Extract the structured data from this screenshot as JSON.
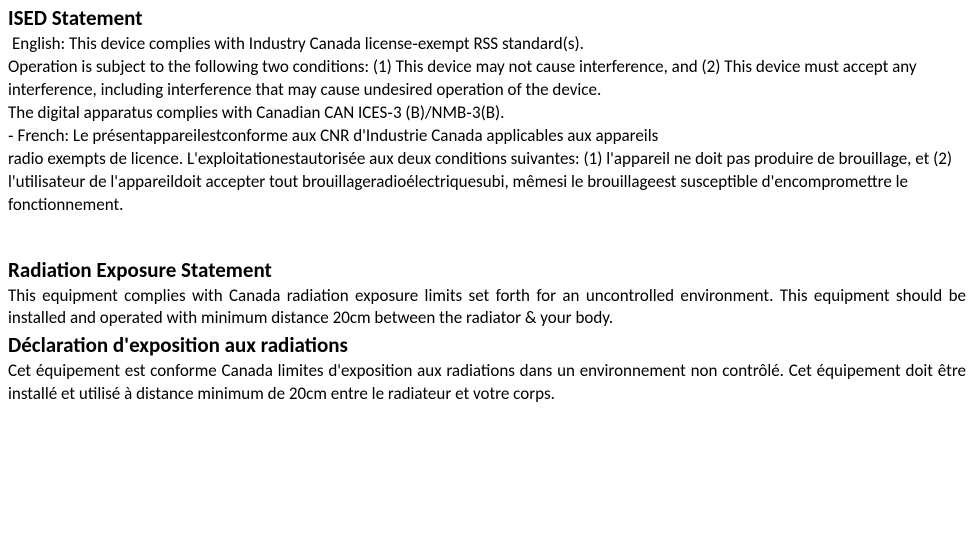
{
  "heading1": "ISED Statement",
  "para1": " English: This device complies with Industry Canada license‐exempt RSS standard(s).",
  "para2": "Operation is subject to the following two conditions: (1) This device may not cause interference, and (2) This device must accept any interference, including interference that may cause undesired operation of the device.",
  "para3": "The digital apparatus complies with Canadian CAN ICES‐3 (B)/NMB‐3(B).",
  "para4": "‐ French: Le présentappareilestconforme aux CNR d'Industrie Canada applicables aux appareils",
  "para5": "radio exempts de licence. L'exploitationestautorisée aux deux conditions suivantes: (1) l'appareil ne doit pas produire de brouillage, et (2) l'utilisateur de l'appareildoit accepter tout brouillageradioélectriquesubi, mêmesi le brouillageest susceptible d'encompromettre le fonctionnement.",
  "heading2": "Radiation Exposure Statement",
  "para6": "This equipment complies with Canada radiation exposure limits set forth for an uncontrolled environment. This equipment should be installed and operated with minimum distance 20cm between the radiator & your body.",
  "heading3": "Déclaration d'exposition aux radiations",
  "para7": "Cet équipement est conforme Canada limites d'exposition aux radiations dans un environnement non contrôlé. Cet équipement doit être installé et utilisé à distance minimum de 20cm entre le radiateur et votre corps.",
  "styles": {
    "background_color": "#ffffff",
    "text_color": "#000000",
    "heading_fontsize": 21,
    "heading_weight": "bold",
    "body_fontsize": 17,
    "font_family": "Calibri, Arial, sans-serif",
    "line_height": 1.35,
    "section_gap": 40
  }
}
